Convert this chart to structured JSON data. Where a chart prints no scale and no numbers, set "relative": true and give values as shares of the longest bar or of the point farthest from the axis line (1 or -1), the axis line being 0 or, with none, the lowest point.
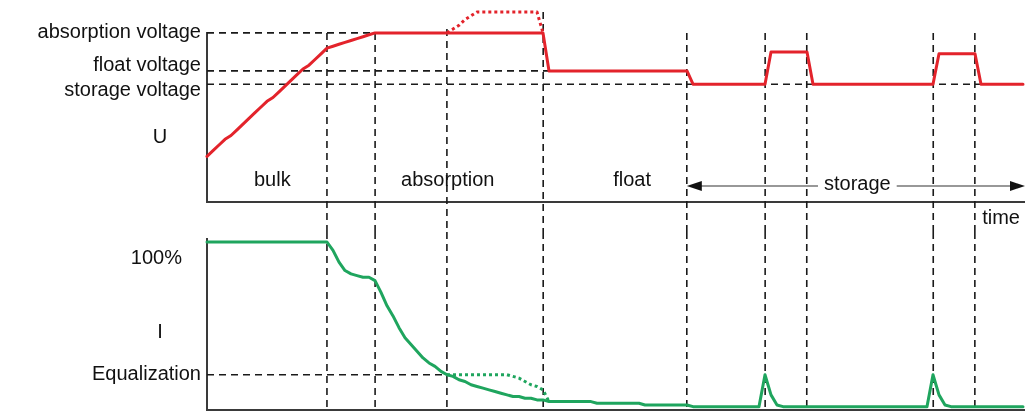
{
  "chart_data": [
    {
      "type": "line",
      "relative": true,
      "ylabel": "U",
      "xlabel": "time",
      "categories": [
        null,
        null,
        null,
        null,
        null,
        null,
        null,
        null,
        null,
        null,
        null,
        null,
        null,
        null,
        null,
        null,
        null,
        null,
        null,
        null,
        null,
        null,
        null,
        null,
        null,
        null,
        null,
        null,
        null,
        null,
        null,
        null,
        null,
        null,
        null,
        null,
        null,
        null,
        null,
        null,
        null,
        null,
        null,
        null,
        null,
        null,
        null,
        null,
        null,
        null,
        null,
        null,
        null,
        null,
        null,
        null,
        null,
        null,
        null,
        null,
        null,
        null,
        null,
        null,
        null,
        null,
        null,
        null,
        null,
        null,
        null,
        null,
        null,
        null,
        null,
        null,
        null,
        null,
        null,
        null,
        null,
        null,
        null,
        null,
        null,
        null,
        null,
        null,
        null,
        null,
        null,
        null,
        null,
        null,
        null,
        null,
        null,
        null,
        null,
        null,
        null,
        null,
        null,
        null,
        null,
        null,
        null,
        null,
        null,
        null,
        null,
        null,
        null,
        null,
        null,
        null,
        null,
        null,
        null,
        null,
        null,
        null,
        null,
        null,
        null,
        null,
        null,
        null,
        null,
        null,
        null,
        null,
        null,
        null,
        null,
        null,
        null
      ],
      "series": [
        {
          "color": "#e3232b",
          "line_style": "solid",
          "values": [
            0.24,
            0.27,
            0.3,
            0.33,
            0.35,
            0.38,
            0.41,
            0.44,
            0.47,
            0.5,
            0.53,
            0.55,
            0.58,
            0.61,
            0.64,
            0.67,
            0.7,
            0.72,
            0.75,
            0.78,
            0.81,
            0.82,
            0.83,
            0.84,
            0.85,
            0.86,
            0.87,
            0.88,
            0.89,
            0.89,
            0.89,
            0.89,
            0.89,
            0.89,
            0.89,
            0.89,
            0.89,
            0.89,
            0.89,
            0.89,
            0.89,
            0.89,
            0.89,
            0.89,
            0.89,
            0.89,
            0.89,
            0.89,
            0.89,
            0.89,
            0.89,
            0.89,
            0.89,
            0.89,
            0.89,
            0.89,
            0.89,
            0.69,
            0.69,
            0.69,
            0.69,
            0.69,
            0.69,
            0.69,
            0.69,
            0.69,
            0.69,
            0.69,
            0.69,
            0.69,
            0.69,
            0.69,
            0.69,
            0.69,
            0.69,
            0.69,
            0.69,
            0.69,
            0.69,
            0.69,
            0.69,
            0.62,
            0.62,
            0.62,
            0.62,
            0.62,
            0.62,
            0.62,
            0.62,
            0.62,
            0.62,
            0.62,
            0.62,
            0.62,
            0.79,
            0.79,
            0.79,
            0.79,
            0.79,
            0.79,
            0.79,
            0.62,
            0.62,
            0.62,
            0.62,
            0.62,
            0.62,
            0.62,
            0.62,
            0.62,
            0.62,
            0.62,
            0.62,
            0.62,
            0.62,
            0.62,
            0.62,
            0.62,
            0.62,
            0.62,
            0.62,
            0.62,
            0.78,
            0.78,
            0.78,
            0.78,
            0.78,
            0.78,
            0.78,
            0.62,
            0.62,
            0.62,
            0.62,
            0.62,
            0.62,
            0.62,
            0.62
          ]
        },
        {
          "color": "#e3232b",
          "line_style": "dotted",
          "values": [
            null,
            null,
            null,
            null,
            null,
            null,
            null,
            null,
            null,
            null,
            null,
            null,
            null,
            null,
            null,
            null,
            null,
            null,
            null,
            null,
            null,
            null,
            null,
            null,
            null,
            null,
            null,
            null,
            null,
            null,
            null,
            null,
            null,
            null,
            null,
            null,
            null,
            null,
            null,
            null,
            0.89,
            0.91,
            0.93,
            0.96,
            0.98,
            1,
            1,
            1,
            1,
            1,
            1,
            1,
            1,
            1,
            1,
            1,
            0.89,
            null,
            null,
            null,
            null,
            null,
            null,
            null,
            null,
            null,
            null,
            null,
            null,
            null,
            null,
            null,
            null,
            null,
            null,
            null,
            null,
            null,
            null,
            null,
            null,
            null,
            null,
            null,
            null,
            null,
            null,
            null,
            null,
            null,
            null,
            null,
            null,
            null,
            null,
            null,
            null,
            null,
            null,
            null,
            null,
            null,
            null,
            null,
            null,
            null,
            null,
            null,
            null,
            null,
            null,
            null,
            null,
            null,
            null,
            null,
            null,
            null,
            null,
            null,
            null,
            null,
            null,
            null,
            null,
            null,
            null,
            null,
            null,
            null,
            null,
            null,
            null,
            null,
            null,
            null,
            null
          ]
        }
      ],
      "ref_lines": [
        {
          "axis": "y",
          "value": 0.89,
          "label": "absorption voltage",
          "line_style": "dashed"
        },
        {
          "axis": "y",
          "value": 0.69,
          "label": "float voltage",
          "line_style": "dashed"
        },
        {
          "axis": "y",
          "value": 0.62,
          "label": "storage voltage",
          "line_style": "dashed"
        }
      ],
      "annotations": [
        "bulk",
        "absorption",
        "float",
        "storage"
      ]
    },
    {
      "type": "line",
      "relative": true,
      "ylabel": "I",
      "categories": [
        null,
        null,
        null,
        null,
        null,
        null,
        null,
        null,
        null,
        null,
        null,
        null,
        null,
        null,
        null,
        null,
        null,
        null,
        null,
        null,
        null,
        null,
        null,
        null,
        null,
        null,
        null,
        null,
        null,
        null,
        null,
        null,
        null,
        null,
        null,
        null,
        null,
        null,
        null,
        null,
        null,
        null,
        null,
        null,
        null,
        null,
        null,
        null,
        null,
        null,
        null,
        null,
        null,
        null,
        null,
        null,
        null,
        null,
        null,
        null,
        null,
        null,
        null,
        null,
        null,
        null,
        null,
        null,
        null,
        null,
        null,
        null,
        null,
        null,
        null,
        null,
        null,
        null,
        null,
        null,
        null,
        null,
        null,
        null,
        null,
        null,
        null,
        null,
        null,
        null,
        null,
        null,
        null,
        null,
        null,
        null,
        null,
        null,
        null,
        null,
        null,
        null,
        null,
        null,
        null,
        null,
        null,
        null,
        null,
        null,
        null,
        null,
        null,
        null,
        null,
        null,
        null,
        null,
        null,
        null,
        null,
        null,
        null,
        null,
        null,
        null,
        null,
        null,
        null,
        null,
        null,
        null,
        null,
        null,
        null,
        null,
        null
      ],
      "series": [
        {
          "color": "#1fa55e",
          "line_style": "solid",
          "values": [
            1,
            1,
            1,
            1,
            1,
            1,
            1,
            1,
            1,
            1,
            1,
            1,
            1,
            1,
            1,
            1,
            1,
            1,
            1,
            1,
            1,
            0.95,
            0.88,
            0.83,
            0.81,
            0.8,
            0.79,
            0.79,
            0.77,
            0.7,
            0.62,
            0.56,
            0.49,
            0.43,
            0.39,
            0.35,
            0.31,
            0.28,
            0.26,
            0.23,
            0.21,
            0.2,
            0.18,
            0.17,
            0.15,
            0.14,
            0.13,
            0.12,
            0.11,
            0.1,
            0.09,
            0.08,
            0.08,
            0.07,
            0.07,
            0.06,
            0.06,
            0.05,
            0.05,
            0.05,
            0.05,
            0.05,
            0.05,
            0.05,
            0.05,
            0.04,
            0.04,
            0.04,
            0.04,
            0.04,
            0.04,
            0.04,
            0.04,
            0.03,
            0.03,
            0.03,
            0.03,
            0.03,
            0.03,
            0.03,
            0.03,
            0.02,
            0.02,
            0.02,
            0.02,
            0.02,
            0.02,
            0.02,
            0.02,
            0.02,
            0.02,
            0.02,
            0.02,
            0.21,
            0.09,
            0.03,
            0.02,
            0.02,
            0.02,
            0.02,
            0.02,
            0.02,
            0.02,
            0.02,
            0.02,
            0.02,
            0.02,
            0.02,
            0.02,
            0.02,
            0.02,
            0.02,
            0.02,
            0.02,
            0.02,
            0.02,
            0.02,
            0.02,
            0.02,
            0.02,
            0.02,
            0.21,
            0.09,
            0.03,
            0.02,
            0.02,
            0.02,
            0.02,
            0.02,
            0.02,
            0.02,
            0.02,
            0.02,
            0.02,
            0.02,
            0.02,
            0.02
          ]
        },
        {
          "color": "#1fa55e",
          "line_style": "dotted",
          "values": [
            null,
            null,
            null,
            null,
            null,
            null,
            null,
            null,
            null,
            null,
            null,
            null,
            null,
            null,
            null,
            null,
            null,
            null,
            null,
            null,
            null,
            null,
            null,
            null,
            null,
            null,
            null,
            null,
            null,
            null,
            null,
            null,
            null,
            null,
            null,
            null,
            null,
            null,
            null,
            null,
            0.21,
            0.21,
            0.21,
            0.21,
            0.21,
            0.21,
            0.21,
            0.21,
            0.21,
            0.21,
            0.21,
            0.2,
            0.19,
            0.17,
            0.15,
            0.14,
            0.12,
            0.05,
            null,
            null,
            null,
            null,
            null,
            null,
            null,
            null,
            null,
            null,
            null,
            null,
            null,
            null,
            null,
            null,
            null,
            null,
            null,
            null,
            null,
            null,
            null,
            null,
            null,
            null,
            null,
            null,
            null,
            null,
            null,
            null,
            null,
            null,
            null,
            null,
            null,
            null,
            null,
            null,
            null,
            null,
            null,
            null,
            null,
            null,
            null,
            null,
            null,
            null,
            null,
            null,
            null,
            null,
            null,
            null,
            null,
            null,
            null,
            null,
            null,
            null,
            null,
            null,
            null,
            null,
            null,
            null,
            null,
            null,
            null,
            null,
            null,
            null,
            null,
            null,
            null,
            null,
            null
          ]
        }
      ],
      "ref_lines": [
        {
          "axis": "y",
          "value": 0.21,
          "label": "Equalization",
          "line_style": "dashed"
        }
      ],
      "annotations": [
        "100%"
      ]
    }
  ]
}
